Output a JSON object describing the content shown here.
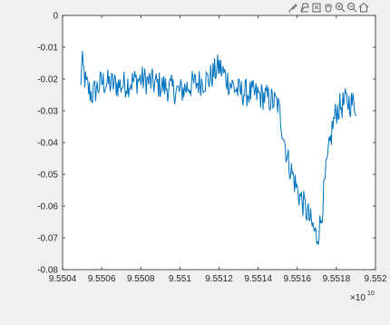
{
  "toolbar": {
    "buttons": [
      {
        "icon": "brush-icon"
      },
      {
        "icon": "datatip-icon"
      },
      {
        "icon": "rotate-icon"
      },
      {
        "icon": "pan-hand-icon"
      },
      {
        "icon": "zoom-in-icon"
      },
      {
        "icon": "zoom-out-icon"
      },
      {
        "icon": "home-icon"
      }
    ]
  },
  "chart_data": {
    "type": "line",
    "title": "",
    "xlabel": "",
    "ylabel": "",
    "xlim": [
      9.5504,
      9.552
    ],
    "ylim": [
      -0.08,
      0
    ],
    "x_exponent_label": "×10",
    "x_exponent_power": "10",
    "xticks": [
      9.5504,
      9.5506,
      9.5508,
      9.551,
      9.5512,
      9.5514,
      9.5516,
      9.5518,
      9.552
    ],
    "xtick_labels": [
      "9.5504",
      "9.5506",
      "9.5508",
      "9.551",
      "9.5512",
      "9.5514",
      "9.5516",
      "9.5518",
      "9.552"
    ],
    "yticks": [
      0,
      -0.01,
      -0.02,
      -0.03,
      -0.04,
      -0.05,
      -0.06,
      -0.07,
      -0.08
    ],
    "ytick_labels": [
      "0",
      "-0.01",
      "-0.02",
      "-0.03",
      "-0.04",
      "-0.05",
      "-0.06",
      "-0.07",
      "-0.08"
    ],
    "grid": false,
    "line_color": "#0072bd",
    "series": [
      {
        "x_start": 9.55049,
        "x_end": 9.5519,
        "profile": [
          [
            9.55049,
            -0.023
          ],
          [
            9.5505,
            -0.015
          ],
          [
            9.55052,
            -0.022
          ],
          [
            9.55055,
            -0.025
          ],
          [
            9.5506,
            -0.021
          ],
          [
            9.5507,
            -0.022
          ],
          [
            9.5508,
            -0.02
          ],
          [
            9.5509,
            -0.022
          ],
          [
            9.551,
            -0.024
          ],
          [
            9.55105,
            -0.022
          ],
          [
            9.5511,
            -0.021
          ],
          [
            9.55115,
            -0.02
          ],
          [
            9.5512,
            -0.016
          ],
          [
            9.55125,
            -0.021
          ],
          [
            9.5513,
            -0.024
          ],
          [
            9.5514,
            -0.025
          ],
          [
            9.55145,
            -0.026
          ],
          [
            9.5515,
            -0.028
          ],
          [
            9.55152,
            -0.034
          ],
          [
            9.55155,
            -0.045
          ],
          [
            9.5516,
            -0.055
          ],
          [
            9.55165,
            -0.062
          ],
          [
            9.5517,
            -0.07
          ],
          [
            9.55172,
            -0.065
          ],
          [
            9.55175,
            -0.048
          ],
          [
            9.55178,
            -0.035
          ],
          [
            9.5518,
            -0.03
          ],
          [
            9.55185,
            -0.027
          ],
          [
            9.5519,
            -0.028
          ]
        ],
        "noise_amplitude": 0.0045,
        "n_points": 360
      }
    ]
  }
}
